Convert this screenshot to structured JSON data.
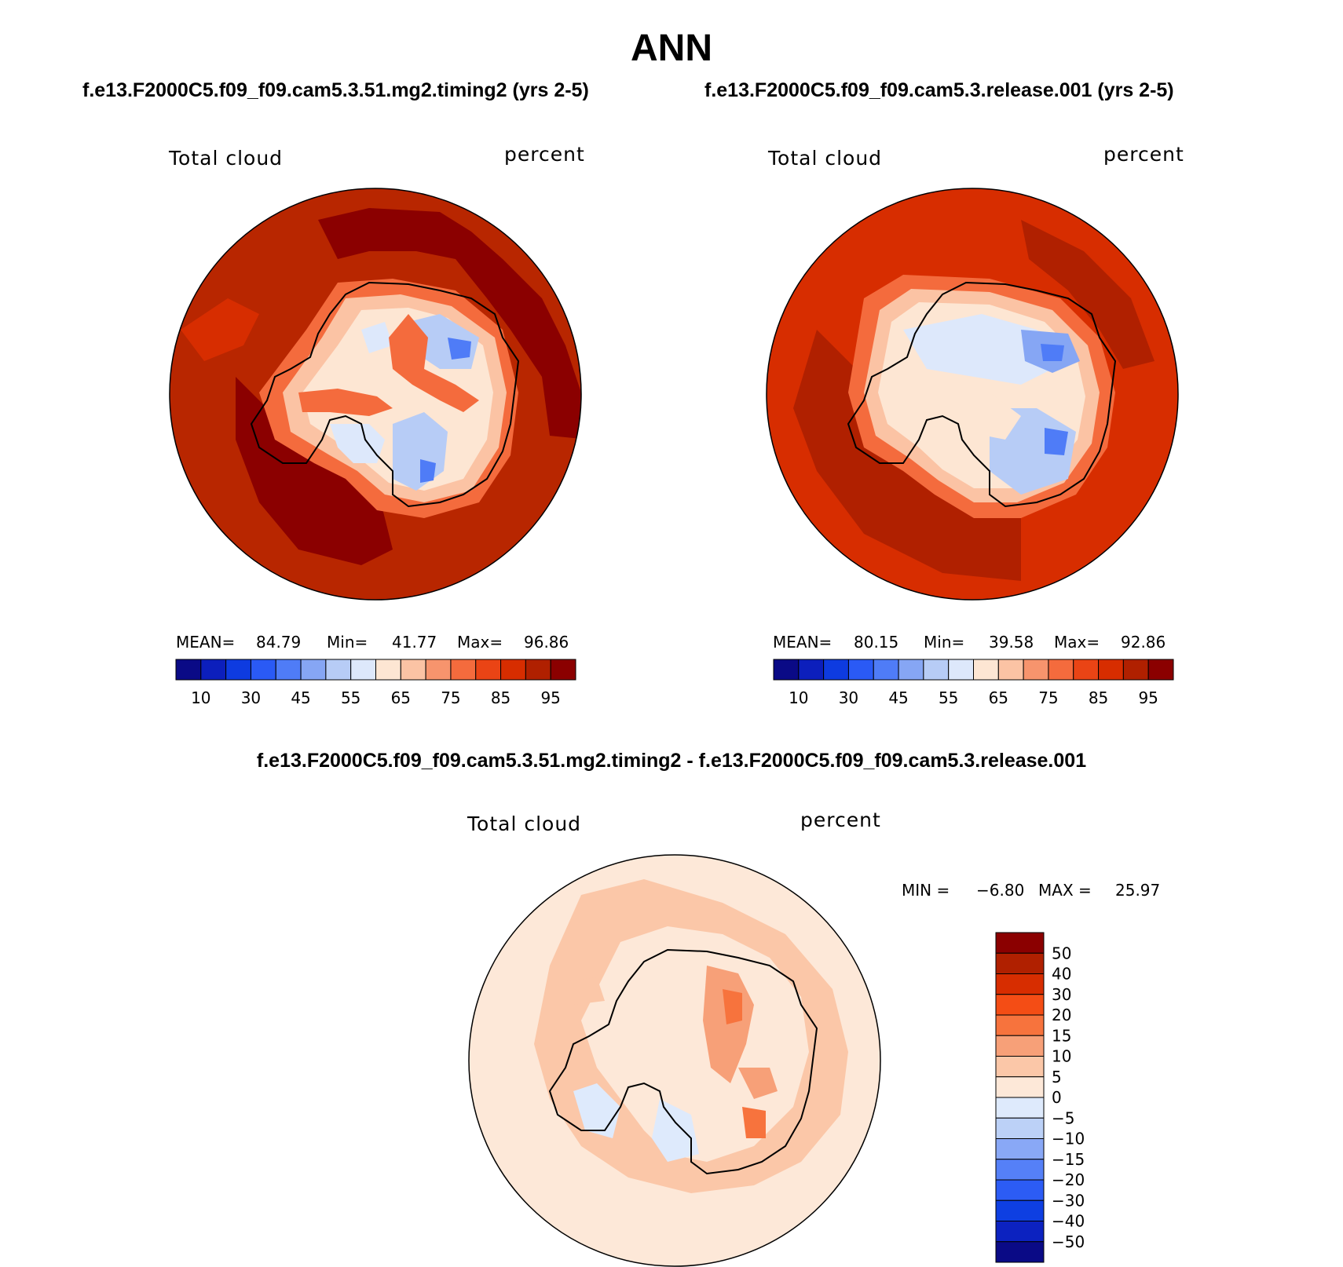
{
  "title": "ANN",
  "case1": "f.e13.F2000C5.f09_f09.cam5.3.51.mg2.timing2 (yrs 2-5)",
  "case2": "f.e13.F2000C5.f09_f09.cam5.3.release.001 (yrs 2-5)",
  "diff_title": "f.e13.F2000C5.f09_f09.cam5.3.51.mg2.timing2 - f.e13.F2000C5.f09_f09.cam5.3.release.001",
  "panels": [
    {
      "variable": "Total cloud",
      "units": "percent",
      "stats": {
        "mean_label": "MEAN=",
        "mean": "84.79",
        "min_label": "Min=",
        "min": "41.77",
        "max_label": "Max=",
        "max": "96.86"
      }
    },
    {
      "variable": "Total cloud",
      "units": "percent",
      "stats": {
        "mean_label": "MEAN=",
        "mean": "80.15",
        "min_label": "Min=",
        "min": "39.58",
        "max_label": "Max=",
        "max": "92.86"
      }
    },
    {
      "variable": "Total cloud",
      "units": "percent",
      "stats": {
        "min_label": "MIN =",
        "min": "−6.80",
        "max_label": "MAX =",
        "max": "25.97"
      }
    }
  ],
  "colorbar_main": {
    "colors": [
      "#0a0a86",
      "#0c1fbc",
      "#0e3be0",
      "#2a5af5",
      "#4f7cf7",
      "#86a6f4",
      "#b7ccf6",
      "#dde8fb",
      "#fde6d3",
      "#fbc3a4",
      "#f7946d",
      "#f46b3d",
      "#ea4415",
      "#d72d00",
      "#b02000",
      "#8b0000"
    ],
    "tick_labels": [
      "10",
      "30",
      "45",
      "55",
      "65",
      "75",
      "85",
      "95"
    ]
  },
  "colorbar_diff": {
    "colors": [
      "#8b0000",
      "#b02000",
      "#d72d00",
      "#f44d15",
      "#f7733d",
      "#f7a078",
      "#fbc7a8",
      "#fde8d8",
      "#deeafc",
      "#bcd1f7",
      "#89a8f6",
      "#5580f7",
      "#2c5cf5",
      "#0e3fe2",
      "#0c22c0",
      "#0a0a86"
    ],
    "tick_labels": [
      "50",
      "40",
      "30",
      "20",
      "15",
      "10",
      "5",
      "0",
      "−5",
      "−10",
      "−15",
      "−20",
      "−30",
      "−40",
      "−50"
    ]
  }
}
